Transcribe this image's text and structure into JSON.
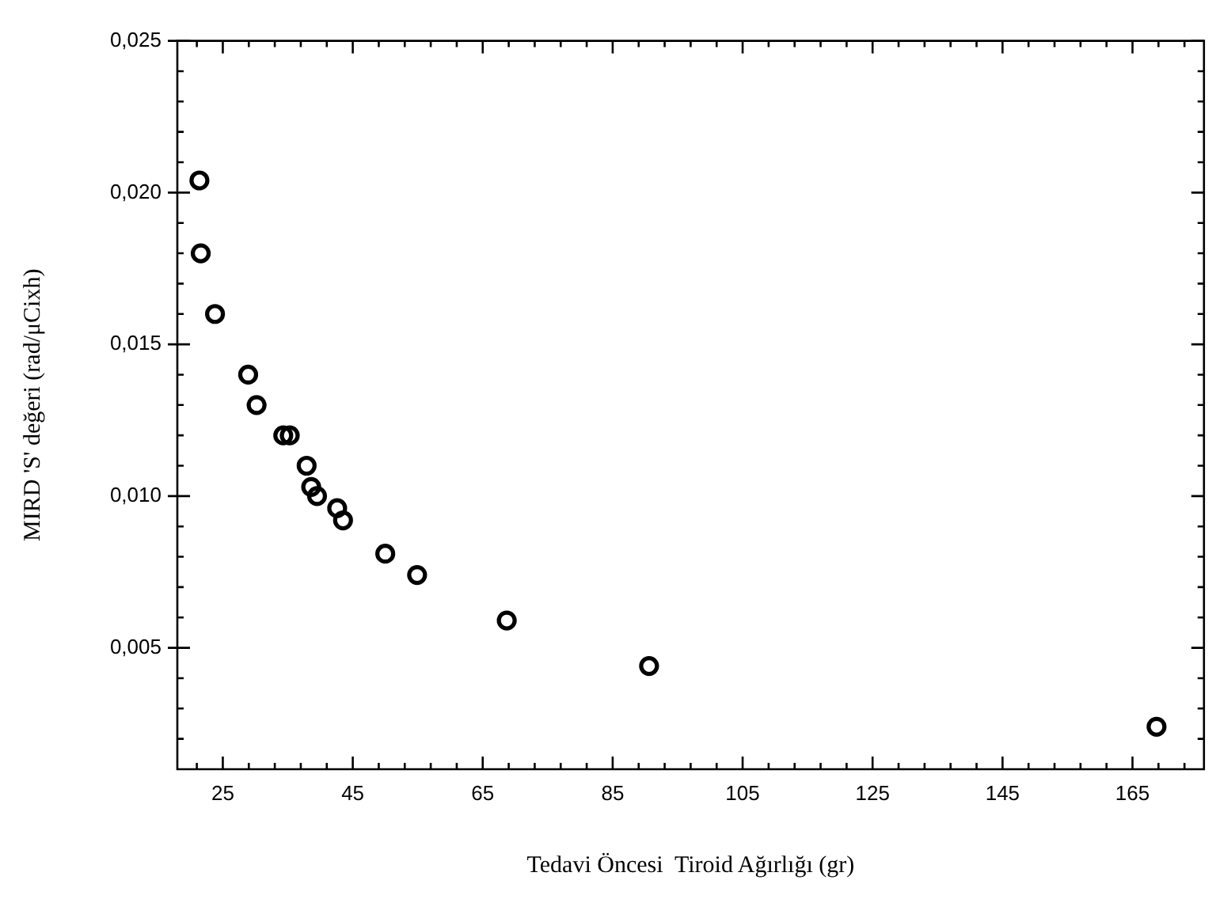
{
  "chart_data": {
    "type": "scatter",
    "xlabel": "Tedavi Öncesi  Tiroid Ağırlığı (gr)",
    "ylabel": "MIRD 'S' değeri (rad/μCixh)",
    "marker": "circle",
    "x": [
      21.4,
      21.6,
      23.8,
      28.9,
      30.2,
      34.3,
      35.3,
      37.9,
      38.6,
      39.5,
      42.6,
      43.5,
      50.0,
      54.9,
      68.7,
      90.6,
      168.7
    ],
    "series": [
      {
        "color": "#000000",
        "values": [
          0.0204,
          0.018,
          0.016,
          0.014,
          0.013,
          0.012,
          0.012,
          0.011,
          0.0103,
          0.01,
          0.0096,
          0.0092,
          0.0081,
          0.0074,
          0.0059,
          0.0044,
          0.0024
        ]
      }
    ],
    "xlim": [
      18,
      176
    ],
    "xticks": [
      {
        "value": 21,
        "label": null
      },
      25,
      {
        "value": 29,
        "label": null
      },
      {
        "value": 33,
        "label": null
      },
      {
        "value": 37,
        "label": null
      },
      {
        "value": 41,
        "label": null
      },
      45,
      {
        "value": 49,
        "label": null
      },
      {
        "value": 53,
        "label": null
      },
      {
        "value": 57,
        "label": null
      },
      {
        "value": 61,
        "label": null
      },
      65,
      {
        "value": 69,
        "label": null
      },
      {
        "value": 73,
        "label": null
      },
      {
        "value": 77,
        "label": null
      },
      {
        "value": 81,
        "label": null
      },
      85,
      {
        "value": 89,
        "label": null
      },
      {
        "value": 93,
        "label": null
      },
      {
        "value": 97,
        "label": null
      },
      {
        "value": 101,
        "label": null
      },
      105,
      {
        "value": 109,
        "label": null
      },
      {
        "value": 113,
        "label": null
      },
      {
        "value": 117,
        "label": null
      },
      {
        "value": 121,
        "label": null
      },
      125,
      {
        "value": 129,
        "label": null
      },
      {
        "value": 133,
        "label": null
      },
      {
        "value": 137,
        "label": null
      },
      {
        "value": 141,
        "label": null
      },
      145,
      {
        "value": 149,
        "label": null
      },
      {
        "value": 153,
        "label": null
      },
      {
        "value": 157,
        "label": null
      },
      {
        "value": 161,
        "label": null
      },
      165,
      {
        "value": 169,
        "label": null
      },
      {
        "value": 173,
        "label": null
      }
    ],
    "ylim": [
      0.001,
      0.025
    ],
    "yticks": [
      {
        "value": 0.002,
        "label": null
      },
      {
        "value": 0.003,
        "label": null
      },
      {
        "value": 0.004,
        "label": null
      },
      {
        "value": 0.005,
        "label": "0,005"
      },
      {
        "value": 0.006,
        "label": null
      },
      {
        "value": 0.007,
        "label": null
      },
      {
        "value": 0.008,
        "label": null
      },
      {
        "value": 0.009,
        "label": null
      },
      {
        "value": 0.01,
        "label": "0,010"
      },
      {
        "value": 0.011,
        "label": null
      },
      {
        "value": 0.012,
        "label": null
      },
      {
        "value": 0.013,
        "label": null
      },
      {
        "value": 0.014,
        "label": null
      },
      {
        "value": 0.015,
        "label": "0,015"
      },
      {
        "value": 0.016,
        "label": null
      },
      {
        "value": 0.017,
        "label": null
      },
      {
        "value": 0.018,
        "label": null
      },
      {
        "value": 0.019,
        "label": null
      },
      {
        "value": 0.02,
        "label": "0,020"
      },
      {
        "value": 0.021,
        "label": null
      },
      {
        "value": 0.022,
        "label": null
      },
      {
        "value": 0.023,
        "label": null
      },
      {
        "value": 0.024,
        "label": null
      },
      {
        "value": 0.025,
        "label": "0,025"
      }
    ]
  }
}
